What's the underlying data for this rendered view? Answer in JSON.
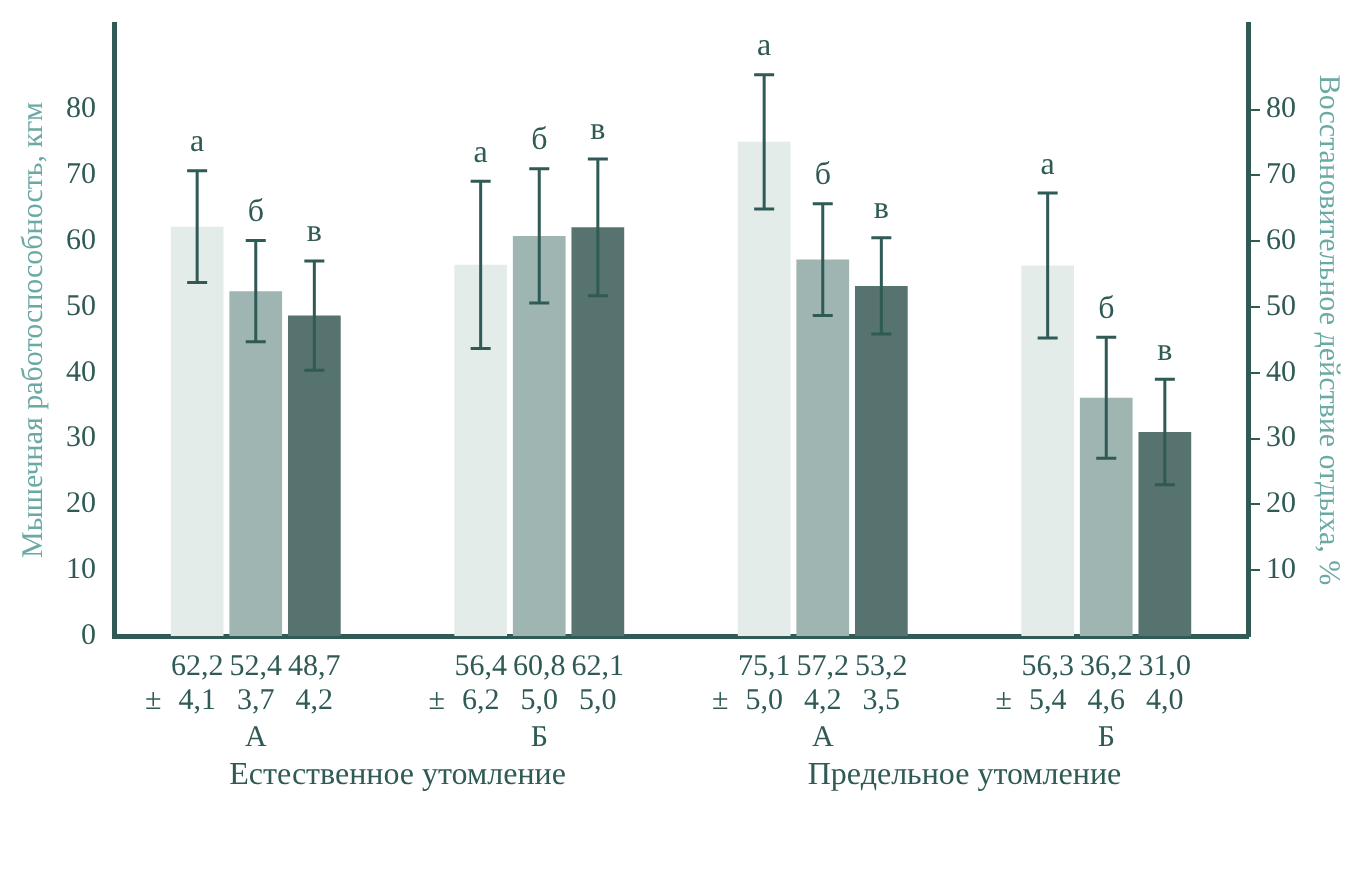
{
  "chart_data": {
    "type": "bar",
    "ylabel": "Мышечная работоспособность, кгм",
    "y2label": "Восстановительное действие отдыха, %",
    "categories": [
      "А",
      "Б",
      "А",
      "Б"
    ],
    "series": [
      {
        "name": "а",
        "color": "#e4ecea",
        "values": [
          62.2,
          56.4,
          75.1,
          56.3
        ],
        "errors": [
          8.5,
          12.7,
          10.2,
          11
        ],
        "value_labels": [
          "62,2\n4,1",
          "56,4\n6,2",
          "75,1\n5,0",
          "56,3\n5,4"
        ]
      },
      {
        "name": "б",
        "color": "#9fb5b2",
        "values": [
          52.4,
          60.8,
          57.2,
          36.2
        ],
        "errors": [
          7.7,
          10.2,
          8.5,
          9.2
        ],
        "value_labels": [
          "52,4\n3,7",
          "60,8\n5,0",
          "57,2\n4,2",
          "36,2\n4,6"
        ]
      },
      {
        "name": "в",
        "color": "#56736f",
        "values": [
          48.7,
          62.1,
          53.2,
          31.0
        ],
        "errors": [
          8.3,
          10.4,
          7.3,
          8
        ],
        "value_labels": [
          "48,7\n4,2",
          "62,1\n5,0",
          "53,2\n3,5",
          "31,0\n4,0"
        ]
      }
    ],
    "ylim": [
      0,
      93
    ],
    "yticks": [
      0,
      10,
      20,
      30,
      40,
      50,
      60,
      70,
      80
    ],
    "y2lim": [
      0,
      93
    ],
    "y2ticks": [
      10,
      20,
      30,
      40,
      50,
      60,
      70,
      80
    ],
    "annotations": [
      "±",
      "±",
      "±",
      "±",
      "Естественное утомление",
      "Предельное утомление"
    ],
    "grid": false,
    "legend": false
  }
}
